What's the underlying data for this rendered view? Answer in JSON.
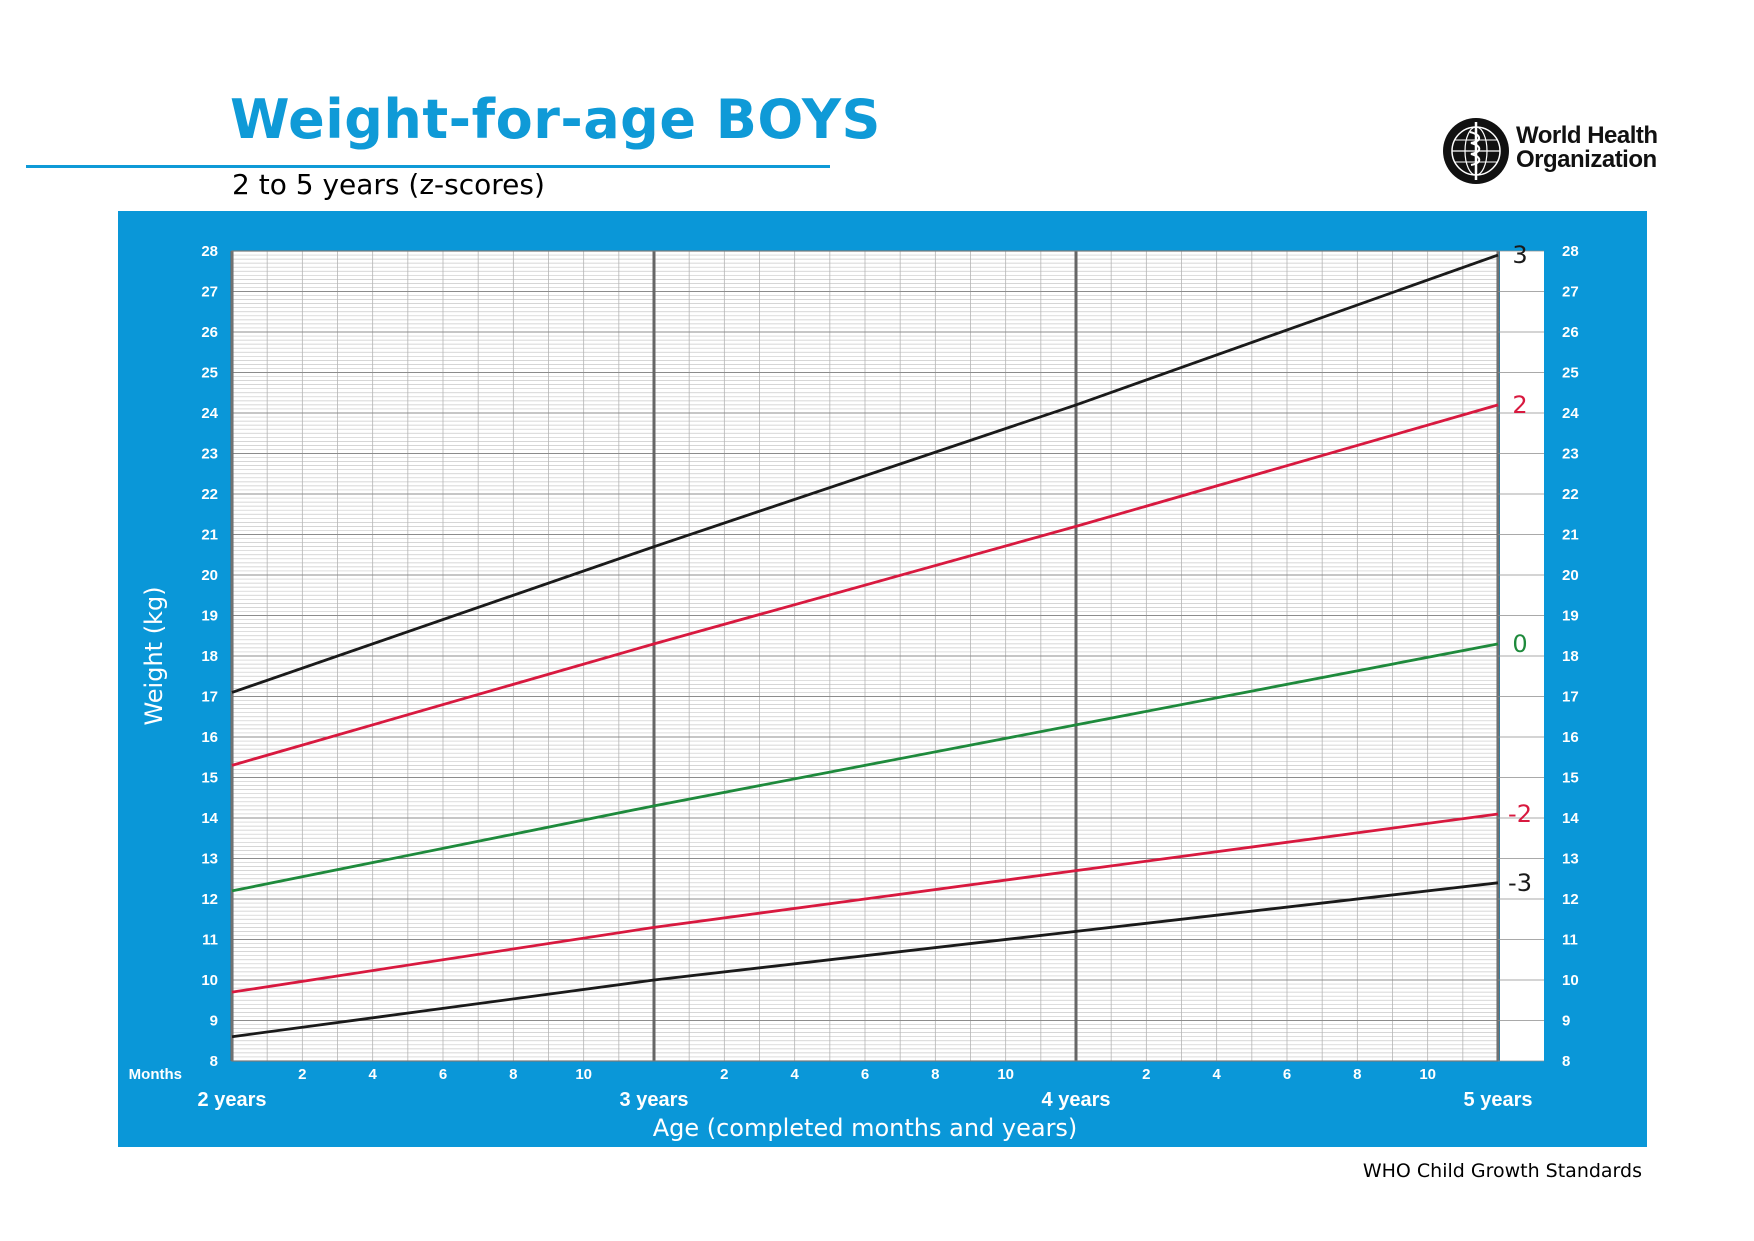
{
  "header": {
    "title": "Weight-for-age BOYS",
    "subtitle": "2 to 5 years (z-scores)",
    "org_line1": "World Health",
    "org_line2": "Organization"
  },
  "footer": {
    "text": "WHO Child Growth Standards"
  },
  "colors": {
    "brand_blue": "#0a97d8",
    "z3": "#1a1a1a",
    "z2": "#d8193f",
    "z0": "#1e8a3c",
    "zneg2": "#d8193f",
    "zneg3": "#1a1a1a"
  },
  "chart_data": {
    "type": "line",
    "title": "Weight-for-age BOYS",
    "subtitle": "2 to 5 years (z-scores)",
    "xlabel": "Age (completed months and years)",
    "ylabel": "Weight (kg)",
    "x_axis_months_label": "Months",
    "x_unit": "months",
    "xlim": [
      24,
      60
    ],
    "ylim": [
      8,
      28
    ],
    "y_ticks": [
      8,
      9,
      10,
      11,
      12,
      13,
      14,
      15,
      16,
      17,
      18,
      19,
      20,
      21,
      22,
      23,
      24,
      25,
      26,
      27,
      28
    ],
    "x_month_ticks": [
      {
        "x": 26,
        "label": "2"
      },
      {
        "x": 28,
        "label": "4"
      },
      {
        "x": 30,
        "label": "6"
      },
      {
        "x": 32,
        "label": "8"
      },
      {
        "x": 34,
        "label": "10"
      },
      {
        "x": 38,
        "label": "2"
      },
      {
        "x": 40,
        "label": "4"
      },
      {
        "x": 42,
        "label": "6"
      },
      {
        "x": 44,
        "label": "8"
      },
      {
        "x": 46,
        "label": "10"
      },
      {
        "x": 50,
        "label": "2"
      },
      {
        "x": 52,
        "label": "4"
      },
      {
        "x": 54,
        "label": "6"
      },
      {
        "x": 56,
        "label": "8"
      },
      {
        "x": 58,
        "label": "10"
      }
    ],
    "x_year_ticks": [
      {
        "x": 24,
        "label": "2 years"
      },
      {
        "x": 36,
        "label": "3 years"
      },
      {
        "x": 48,
        "label": "4 years"
      },
      {
        "x": 60,
        "label": "5 years"
      }
    ],
    "grid": true,
    "x": [
      24,
      36,
      48,
      60
    ],
    "series": [
      {
        "name": "3",
        "values": [
          17.1,
          20.7,
          24.2,
          27.9
        ]
      },
      {
        "name": "2",
        "values": [
          15.3,
          18.3,
          21.2,
          24.2
        ]
      },
      {
        "name": "0",
        "values": [
          12.2,
          14.3,
          16.3,
          18.3
        ]
      },
      {
        "name": "-2",
        "values": [
          9.7,
          11.3,
          12.7,
          14.1
        ]
      },
      {
        "name": "-3",
        "values": [
          8.6,
          10.0,
          11.2,
          12.4
        ]
      }
    ]
  }
}
